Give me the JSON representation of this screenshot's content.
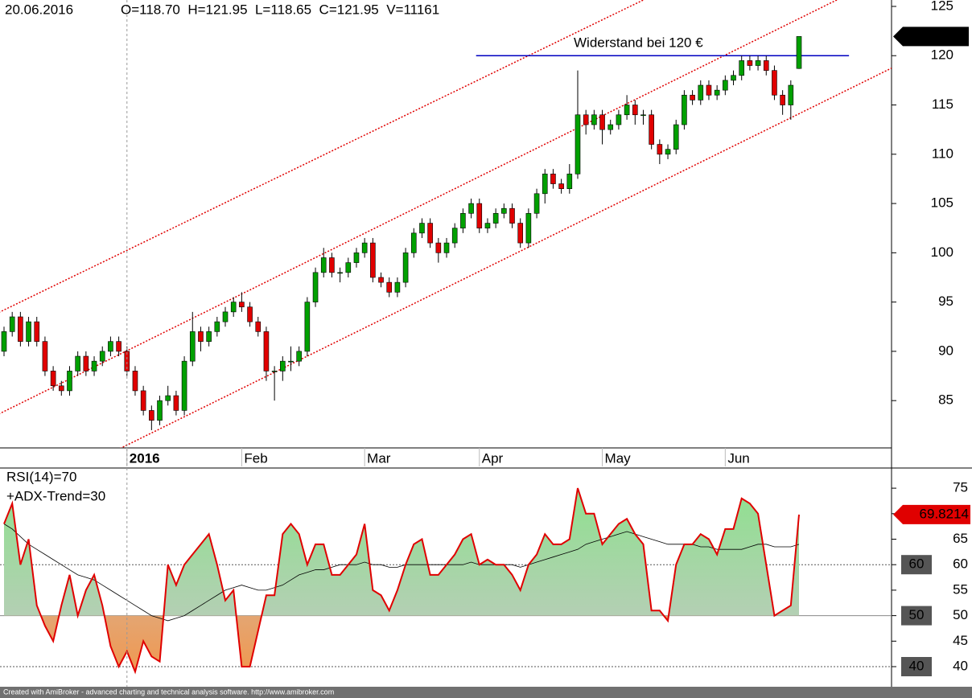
{
  "chart_data": {
    "type": "candlestick",
    "date": "20.06.2016",
    "ohlcv": "O=118.70  H=121.95  L=118.65  C=121.95  V=11161",
    "annotation": "Widerstand bei 120 €",
    "resistance": {
      "value": 120,
      "x": [
        57.6,
        103.1
      ],
      "color": "#0000c0"
    },
    "trendlines": [
      {
        "x": [
          0,
          78
        ],
        "y": [
          94.2,
          125.65
        ]
      },
      {
        "x": [
          0,
          101.6
        ],
        "y": [
          83.9,
          125.65
        ]
      },
      {
        "x": [
          18.2,
          108.2
        ],
        "y": [
          81.8,
          118.7
        ]
      }
    ],
    "trendline_color": "#e00000",
    "up_color": "#00a000",
    "down_color": "#e00000",
    "ylim": [
      80.2,
      125.65
    ],
    "yticks": [
      85,
      90,
      95,
      100,
      105,
      110,
      115,
      120,
      125
    ],
    "categories": [
      null,
      null,
      null,
      null,
      null,
      null,
      null,
      null,
      null,
      null,
      null,
      null,
      null,
      null,
      null,
      "2016",
      null,
      null,
      null,
      null,
      null,
      null,
      null,
      null,
      null,
      null,
      null,
      null,
      null,
      "Feb",
      null,
      null,
      null,
      null,
      null,
      null,
      null,
      null,
      null,
      null,
      null,
      null,
      null,
      null,
      "Mar",
      null,
      null,
      null,
      null,
      null,
      null,
      null,
      null,
      null,
      null,
      null,
      null,
      null,
      "Apr",
      null,
      null,
      null,
      null,
      null,
      null,
      null,
      null,
      null,
      null,
      null,
      null,
      null,
      null,
      "May",
      null,
      null,
      null,
      null,
      null,
      null,
      null,
      null,
      null,
      null,
      null,
      null,
      null,
      null,
      "Jun",
      null,
      null,
      null,
      null,
      null,
      null,
      null,
      null,
      null
    ],
    "ohlc": [
      [
        90,
        92.5,
        89.5,
        92
      ],
      [
        92,
        94,
        91.5,
        93.5
      ],
      [
        93.5,
        94,
        90.5,
        91
      ],
      [
        91,
        93.5,
        90.5,
        93
      ],
      [
        93,
        93.5,
        90.5,
        91
      ],
      [
        91,
        91.5,
        87.5,
        88
      ],
      [
        88,
        88.5,
        86,
        86.5
      ],
      [
        86.5,
        87,
        85.5,
        86
      ],
      [
        86,
        88.5,
        85.5,
        88
      ],
      [
        88,
        90,
        87.5,
        89.5
      ],
      [
        89.5,
        90,
        87.5,
        88
      ],
      [
        88,
        89.5,
        87.5,
        89
      ],
      [
        89,
        90.5,
        88.5,
        90
      ],
      [
        90,
        91.5,
        89.5,
        91
      ],
      [
        91,
        91.5,
        89.5,
        90
      ],
      [
        90,
        90.5,
        87.5,
        88
      ],
      [
        88,
        88.5,
        85.5,
        86
      ],
      [
        86,
        86.5,
        83.5,
        84
      ],
      [
        84,
        84.5,
        82,
        83
      ],
      [
        83,
        85.5,
        82.5,
        85
      ],
      [
        85,
        86.5,
        84.5,
        85.5
      ],
      [
        85.5,
        86,
        83.5,
        84
      ],
      [
        84,
        89.5,
        83.5,
        89
      ],
      [
        89,
        94,
        88.5,
        92
      ],
      [
        92,
        92.5,
        90,
        91
      ],
      [
        91,
        92.5,
        90.5,
        92
      ],
      [
        92,
        93.5,
        91.5,
        93
      ],
      [
        93,
        94.5,
        92.5,
        94
      ],
      [
        94,
        95.5,
        93.5,
        95
      ],
      [
        95,
        96,
        94,
        94.5
      ],
      [
        94.5,
        95,
        92.5,
        93
      ],
      [
        93,
        93.5,
        91.5,
        92
      ],
      [
        92,
        92.5,
        87,
        88
      ],
      [
        88,
        88.5,
        85,
        88
      ],
      [
        88,
        89.5,
        87,
        89
      ],
      [
        89,
        90.5,
        88,
        89
      ],
      [
        89,
        90.5,
        88.5,
        90
      ],
      [
        90,
        95.5,
        89.5,
        95
      ],
      [
        95,
        98.5,
        94.5,
        98
      ],
      [
        98,
        100.5,
        97.5,
        99.5
      ],
      [
        99.5,
        100,
        97.5,
        98
      ],
      [
        98,
        98.5,
        97,
        98
      ],
      [
        98,
        99.5,
        97.5,
        99
      ],
      [
        99,
        100.5,
        98.5,
        100
      ],
      [
        100,
        101.5,
        99.5,
        101
      ],
      [
        101,
        101.5,
        97,
        97.5
      ],
      [
        97.5,
        98,
        96.5,
        97
      ],
      [
        97,
        97.5,
        95.5,
        96
      ],
      [
        96,
        97.5,
        95.5,
        97
      ],
      [
        97,
        100.5,
        96.5,
        100
      ],
      [
        100,
        102.5,
        99.5,
        102
      ],
      [
        102,
        103.5,
        101.5,
        103
      ],
      [
        103,
        103.5,
        100.5,
        101
      ],
      [
        101,
        101.5,
        99,
        100
      ],
      [
        100,
        101.5,
        99.5,
        101
      ],
      [
        101,
        103,
        100.5,
        102.5
      ],
      [
        102.5,
        104.5,
        102,
        104
      ],
      [
        104,
        105.5,
        103.5,
        105
      ],
      [
        105,
        105.5,
        102,
        102.5
      ],
      [
        102.5,
        103.5,
        102,
        103
      ],
      [
        103,
        104.5,
        102.5,
        104
      ],
      [
        104,
        105,
        103.5,
        104.5
      ],
      [
        104.5,
        105,
        102.5,
        103
      ],
      [
        103,
        103.5,
        100.5,
        101
      ],
      [
        101,
        104.5,
        100.5,
        104
      ],
      [
        104,
        106.5,
        103.5,
        106
      ],
      [
        106,
        108.5,
        105,
        108
      ],
      [
        108,
        108.5,
        106.5,
        107
      ],
      [
        107,
        107.5,
        106,
        106.5
      ],
      [
        106.5,
        109,
        106,
        108
      ],
      [
        108,
        118.5,
        107.5,
        114
      ],
      [
        114,
        114.5,
        112,
        113
      ],
      [
        113,
        114.5,
        112.5,
        114
      ],
      [
        114,
        114.5,
        111,
        112.5
      ],
      [
        112.5,
        113.5,
        112,
        113
      ],
      [
        113,
        114.5,
        112.5,
        114
      ],
      [
        114,
        116,
        113.5,
        115
      ],
      [
        115,
        115.5,
        113,
        114
      ],
      [
        114,
        114.5,
        113,
        114
      ],
      [
        114,
        114.5,
        110.5,
        111
      ],
      [
        111,
        111.5,
        109,
        110
      ],
      [
        110,
        111,
        109.5,
        110.5
      ],
      [
        110.5,
        113.5,
        110,
        113
      ],
      [
        113,
        116.5,
        112.5,
        116
      ],
      [
        116,
        116.5,
        115,
        115.5
      ],
      [
        115.5,
        117.5,
        115,
        117
      ],
      [
        117,
        117.5,
        115.5,
        116
      ],
      [
        116,
        117,
        115.5,
        116.5
      ],
      [
        116.5,
        118,
        116,
        117.5
      ],
      [
        117.5,
        118.5,
        117,
        118
      ],
      [
        118,
        120,
        117.5,
        119.5
      ],
      [
        119.5,
        120,
        118.5,
        119
      ],
      [
        119,
        120,
        118.5,
        119.5
      ],
      [
        119.5,
        120,
        118,
        118.5
      ],
      [
        118.5,
        119,
        115.5,
        116
      ],
      [
        116,
        116.5,
        114,
        115
      ],
      [
        115,
        117.5,
        113.5,
        117
      ],
      [
        118.7,
        121.95,
        118.65,
        121.95
      ]
    ],
    "rsi_legend": "RSI(14)=70",
    "adx_legend": "+ADX-Trend=30",
    "rsi_color": "#e00000",
    "rsi": [
      68,
      72,
      60,
      65,
      52,
      48,
      45,
      52,
      58,
      50,
      55,
      58,
      52,
      44,
      40,
      43,
      39,
      45,
      42,
      41,
      60,
      56,
      60,
      62,
      64,
      66,
      60,
      53,
      55,
      40,
      40,
      47,
      54,
      54,
      66,
      68,
      66,
      60,
      64,
      64,
      58,
      58,
      60,
      62,
      68,
      55,
      54,
      51,
      55,
      60,
      64,
      65,
      58,
      58,
      60,
      62,
      65,
      66,
      60,
      61,
      60,
      60,
      58,
      55,
      60,
      62,
      66,
      64,
      64,
      65,
      75,
      70,
      70,
      64,
      66,
      68,
      69,
      66,
      64,
      51,
      51,
      49,
      60,
      64,
      64,
      66,
      65,
      62,
      67,
      67,
      73,
      72,
      70,
      60,
      50,
      51,
      52,
      69.8214
    ],
    "rsi_average": [
      68,
      67,
      65.5,
      64,
      63,
      62,
      61,
      60,
      59,
      58,
      57.5,
      57,
      56,
      55,
      54,
      53,
      52,
      51,
      50,
      49.5,
      49,
      49.5,
      50,
      51,
      52,
      53,
      54,
      55,
      55.5,
      56,
      55.5,
      55,
      55,
      55.5,
      56,
      57,
      58,
      58.5,
      59,
      59,
      59.5,
      60,
      60,
      60,
      60.5,
      60,
      60,
      59.5,
      59.5,
      60,
      60,
      60,
      60,
      60,
      60,
      60,
      60,
      60.5,
      60,
      60,
      60,
      60,
      60,
      59.5,
      60,
      60.5,
      61,
      61.5,
      62,
      62.5,
      63,
      64,
      64.5,
      65,
      65.5,
      66,
      66.5,
      66,
      65.5,
      65,
      64.5,
      64,
      64,
      64,
      64,
      63.5,
      63.5,
      63,
      63,
      63,
      63,
      63.5,
      64,
      64,
      63.5,
      63.5,
      63.5,
      64
    ],
    "rsi_ylim": [
      35.9,
      78.8
    ],
    "rsi_yticks": [
      40,
      45,
      50,
      55,
      60,
      65,
      70,
      75
    ],
    "rsi_levels": [
      60,
      50,
      40
    ],
    "footer": "Created with AmiBroker - advanced charting and technical analysis software. http://www.amibroker.com"
  }
}
